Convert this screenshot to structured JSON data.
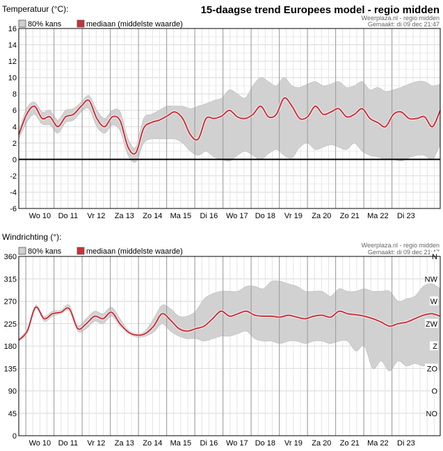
{
  "chart_data": [
    {
      "type": "area",
      "title": "15-daagse trend Europees model - regio midden",
      "ylabel": "Temperatuur (°C):",
      "source": "Weerplaza.nl - regio midden",
      "created": "Gemaakt:  di 09 dec 21:47",
      "ylim": [
        -6,
        16
      ],
      "yticks": [
        "-6",
        "-4",
        "-2",
        "0",
        "2",
        "4",
        "6",
        "8",
        "10",
        "12",
        "14",
        "16"
      ],
      "day_labels": [
        "Wo 10",
        "Do 11",
        "Vr 12",
        "Za 13",
        "Zo 14",
        "Ma 15",
        "Di 16",
        "Wo 17",
        "Do 18",
        "Vr 19",
        "Za 20",
        "Zo 21",
        "Ma 22",
        "Di 23"
      ],
      "x_start": "2025-12-09 18:00",
      "x_step_hours": 6,
      "x_end_day": 15.25,
      "legend": {
        "band": "80% kans",
        "median": "mediaan (middelste waarde)",
        "placement": "top-left"
      },
      "colors": {
        "band": "#d1d1d1",
        "median": "#c8323a",
        "zero_line": "#000000",
        "grid": "#d8d8d8",
        "day_line": "#999999"
      },
      "series": [
        {
          "name": "mediaan (middelste waarde)",
          "values": [
            3.0,
            5.5,
            6.5,
            5.0,
            5.2,
            4.0,
            5.2,
            5.5,
            6.5,
            7.2,
            5.0,
            4.0,
            5.2,
            4.7,
            1.5,
            0.8,
            3.8,
            4.5,
            4.8,
            5.3,
            5.8,
            5.0,
            3.0,
            2.5,
            5.0,
            5.0,
            5.3,
            6.0,
            5.2,
            5.0,
            5.5,
            6.5,
            5.2,
            5.5,
            7.5,
            6.5,
            5.0,
            5.2,
            6.5,
            5.5,
            5.8,
            6.2,
            5.2,
            5.5,
            6.2,
            5.0,
            4.5,
            4.0,
            5.5,
            5.8,
            5.0,
            5.0,
            5.2,
            4.0,
            6.0
          ]
        },
        {
          "name": "80% kans (ondergrens)",
          "values": [
            2.5,
            4.5,
            5.5,
            4.3,
            4.2,
            3.2,
            4.5,
            4.8,
            5.8,
            6.2,
            4.0,
            3.2,
            4.2,
            3.5,
            0.5,
            -0.3,
            2.0,
            2.5,
            2.5,
            2.5,
            2.5,
            2.0,
            1.0,
            0.5,
            1.0,
            0.3,
            0,
            -0.2,
            0.5,
            1.0,
            0.5,
            0,
            0.7,
            1.2,
            0.5,
            0.2,
            1.5,
            2.0,
            1.2,
            1.5,
            1.8,
            1.5,
            1.2,
            2.0,
            1.0,
            0.5,
            0.3,
            0,
            0,
            -0.2,
            0.2,
            0.5,
            0.5,
            0,
            1.8
          ]
        },
        {
          "name": "80% kans (bovengrens)",
          "values": [
            3.5,
            6.2,
            7.0,
            5.8,
            6.0,
            4.8,
            6.0,
            6.2,
            7.0,
            7.8,
            6.0,
            5.0,
            6.0,
            5.8,
            2.5,
            1.5,
            5.0,
            5.5,
            6.0,
            6.5,
            6.5,
            6.5,
            6.2,
            6.5,
            6.8,
            7.2,
            7.5,
            8.5,
            8.0,
            7.5,
            9.0,
            10.0,
            9.5,
            9.0,
            10.0,
            9.0,
            8.8,
            9.2,
            9.5,
            9.0,
            9.2,
            9.5,
            8.8,
            9.0,
            9.5,
            8.5,
            8.8,
            8.3,
            8.5,
            8.8,
            9.2,
            9.5,
            9.5,
            9.0,
            9.2
          ]
        }
      ]
    },
    {
      "type": "area",
      "ylabel": "Windrichting (°):",
      "source": "Weerplaza.nl - regio midden",
      "created": "Gemaakt:  di 09 dec 21:47",
      "ylim": [
        0,
        360
      ],
      "yticks": [
        "0",
        "45",
        "90",
        "135",
        "180",
        "225",
        "270",
        "315",
        "360"
      ],
      "compass": [
        "NO",
        "O",
        "ZO",
        "Z",
        "ZW",
        "W",
        "NW",
        "N"
      ],
      "day_labels": [
        "Wo 10",
        "Do 11",
        "Vr 12",
        "Za 13",
        "Zo 14",
        "Ma 15",
        "Di 16",
        "Wo 17",
        "Do 18",
        "Vr 19",
        "Za 20",
        "Zo 21",
        "Ma 22",
        "Di 23"
      ],
      "legend": {
        "band": "80% kans",
        "median": "mediaan (middelste waarde)",
        "placement": "top-left"
      },
      "series": [
        {
          "name": "mediaan (middelste waarde)",
          "values": [
            192,
            210,
            258,
            235,
            245,
            248,
            255,
            215,
            225,
            240,
            235,
            248,
            225,
            208,
            202,
            205,
            220,
            245,
            232,
            215,
            210,
            215,
            220,
            235,
            250,
            240,
            245,
            250,
            242,
            240,
            240,
            238,
            242,
            238,
            235,
            240,
            242,
            238,
            250,
            245,
            243,
            240,
            235,
            228,
            220,
            225,
            228,
            235,
            242,
            245,
            240
          ]
        },
        {
          "name": "80% kans (ondergrens)",
          "values": [
            190,
            205,
            255,
            230,
            240,
            245,
            250,
            210,
            215,
            230,
            225,
            240,
            220,
            205,
            198,
            200,
            208,
            225,
            210,
            200,
            195,
            195,
            190,
            195,
            200,
            200,
            205,
            210,
            195,
            190,
            190,
            185,
            190,
            190,
            185,
            190,
            190,
            185,
            190,
            190,
            170,
            180,
            135,
            150,
            130,
            150,
            140,
            145,
            140,
            145,
            130
          ]
        },
        {
          "name": "80% kans (bovengrens)",
          "values": [
            195,
            215,
            262,
            240,
            250,
            252,
            262,
            222,
            235,
            250,
            245,
            258,
            235,
            212,
            205,
            210,
            235,
            262,
            255,
            240,
            240,
            250,
            275,
            285,
            290,
            290,
            290,
            300,
            300,
            295,
            310,
            310,
            305,
            300,
            290,
            290,
            290,
            280,
            295,
            290,
            290,
            295,
            290,
            290,
            290,
            270,
            275,
            280,
            300,
            305,
            295
          ]
        }
      ]
    }
  ]
}
